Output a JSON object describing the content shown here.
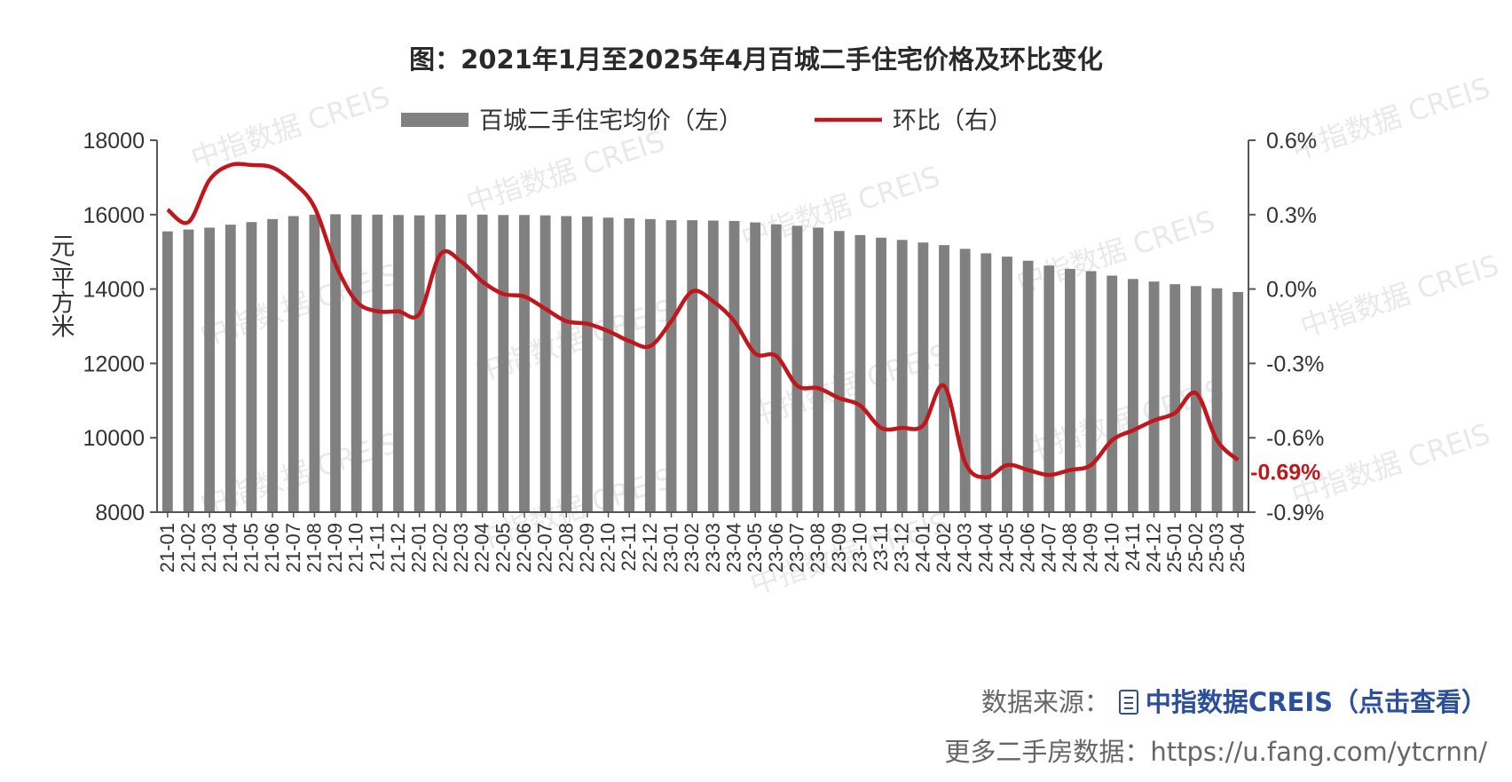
{
  "title": "图：2021年1月至2025年4月百城二手住宅价格及环比变化",
  "watermark": "中指数据 CREIS",
  "footer": {
    "source_label": "数据来源：",
    "source_link": "中指数据CREIS（点击查看）",
    "more_line": "更多二手房数据：https://u.fang.com/ytcrnn/"
  },
  "colors": {
    "bar": "#808080",
    "line": "#c0161c",
    "axis": "#555555",
    "link": "#2b4f9e"
  },
  "chart_data": {
    "type": "bar",
    "title": "图：2021年1月至2025年4月百城二手住宅价格及环比变化",
    "categories": [
      "21-01",
      "21-02",
      "21-03",
      "21-04",
      "21-05",
      "21-06",
      "21-07",
      "21-08",
      "21-09",
      "21-10",
      "21-11",
      "21-12",
      "22-01",
      "22-02",
      "22-03",
      "22-04",
      "22-05",
      "22-06",
      "22-07",
      "22-08",
      "22-09",
      "22-10",
      "22-11",
      "22-12",
      "23-01",
      "23-02",
      "23-03",
      "23-04",
      "23-05",
      "23-06",
      "23-07",
      "23-08",
      "23-09",
      "23-10",
      "23-11",
      "23-12",
      "24-01",
      "24-02",
      "24-03",
      "24-04",
      "24-05",
      "24-06",
      "24-07",
      "24-08",
      "24-09",
      "24-10",
      "24-11",
      "24-12",
      "25-01",
      "25-02",
      "25-03",
      "25-04"
    ],
    "series": [
      {
        "name": "百城二手住宅均价（左）",
        "type": "bar",
        "axis": "left",
        "values": [
          15550,
          15600,
          15650,
          15730,
          15800,
          15880,
          15960,
          16000,
          16010,
          16000,
          16000,
          15990,
          15980,
          16000,
          16000,
          16000,
          15990,
          15990,
          15980,
          15960,
          15950,
          15920,
          15900,
          15880,
          15850,
          15850,
          15840,
          15830,
          15790,
          15740,
          15700,
          15650,
          15560,
          15450,
          15380,
          15320,
          15250,
          15180,
          15080,
          14960,
          14870,
          14760,
          14630,
          14540,
          14480,
          14360,
          14270,
          14200,
          14130,
          14080,
          14020,
          13920
        ]
      },
      {
        "name": "环比（右）",
        "type": "line",
        "axis": "right",
        "values": [
          0.32,
          0.27,
          0.44,
          0.5,
          0.5,
          0.49,
          0.43,
          0.33,
          0.1,
          -0.05,
          -0.09,
          -0.09,
          -0.1,
          0.14,
          0.11,
          0.03,
          -0.02,
          -0.03,
          -0.08,
          -0.13,
          -0.14,
          -0.17,
          -0.21,
          -0.23,
          -0.13,
          -0.01,
          -0.05,
          -0.13,
          -0.26,
          -0.27,
          -0.39,
          -0.4,
          -0.44,
          -0.47,
          -0.56,
          -0.56,
          -0.55,
          -0.39,
          -0.7,
          -0.76,
          -0.71,
          -0.73,
          -0.75,
          -0.73,
          -0.71,
          -0.61,
          -0.57,
          -0.53,
          -0.5,
          -0.42,
          -0.61,
          -0.69
        ]
      }
    ],
    "y_left": {
      "label": "元/平方米",
      "ylim": [
        8000,
        18000
      ],
      "ticks": [
        "8000",
        "10000",
        "12000",
        "14000",
        "16000",
        "18000"
      ]
    },
    "y_right": {
      "ylim": [
        -0.9,
        0.6
      ],
      "ticks": [
        "-0.9%",
        "-0.6%",
        "-0.3%",
        "0.0%",
        "0.3%",
        "0.6%"
      ]
    },
    "last_label": "-0.69%",
    "legend": {
      "position": "top",
      "bar_label": "百城二手住宅均价（左）",
      "line_label": "环比（右）"
    },
    "grid": false
  }
}
